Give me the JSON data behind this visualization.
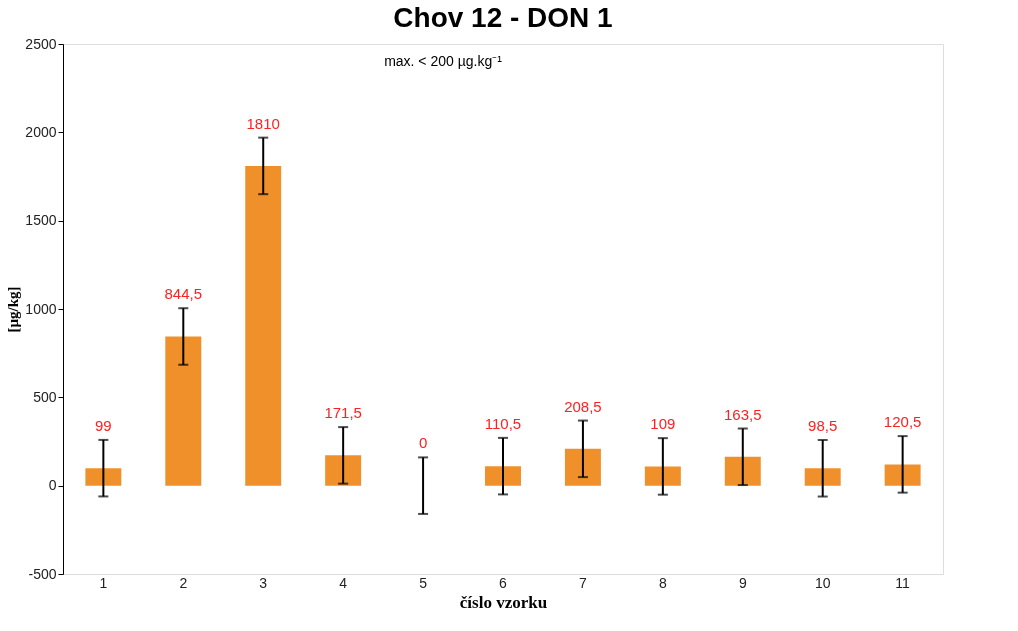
{
  "chart_data": {
    "type": "bar",
    "title": "Chov 12 - DON 1",
    "xlabel": "číslo vzorku",
    "ylabel": "[µg/kg]",
    "categories": [
      "1",
      "2",
      "3",
      "4",
      "5",
      "6",
      "7",
      "8",
      "9",
      "10",
      "11"
    ],
    "values": [
      99,
      844.5,
      1810,
      171.5,
      0,
      110.5,
      208.5,
      109,
      163.5,
      98.5,
      120.5
    ],
    "errors": [
      160,
      160,
      160,
      160,
      160,
      160,
      160,
      160,
      160,
      160,
      160
    ],
    "value_labels": [
      "99",
      "844,5",
      "1810",
      "171,5",
      "0",
      "110,5",
      "208,5",
      "109",
      "163,5",
      "98,5",
      "120,5"
    ],
    "color": "#f0902a",
    "ylim": [
      -500,
      2500
    ],
    "yticks": [
      -500,
      0,
      500,
      1000,
      1500,
      2000,
      2500
    ],
    "grid": false,
    "annotations": [
      "max. < 200 µg.kg⁻¹"
    ]
  }
}
